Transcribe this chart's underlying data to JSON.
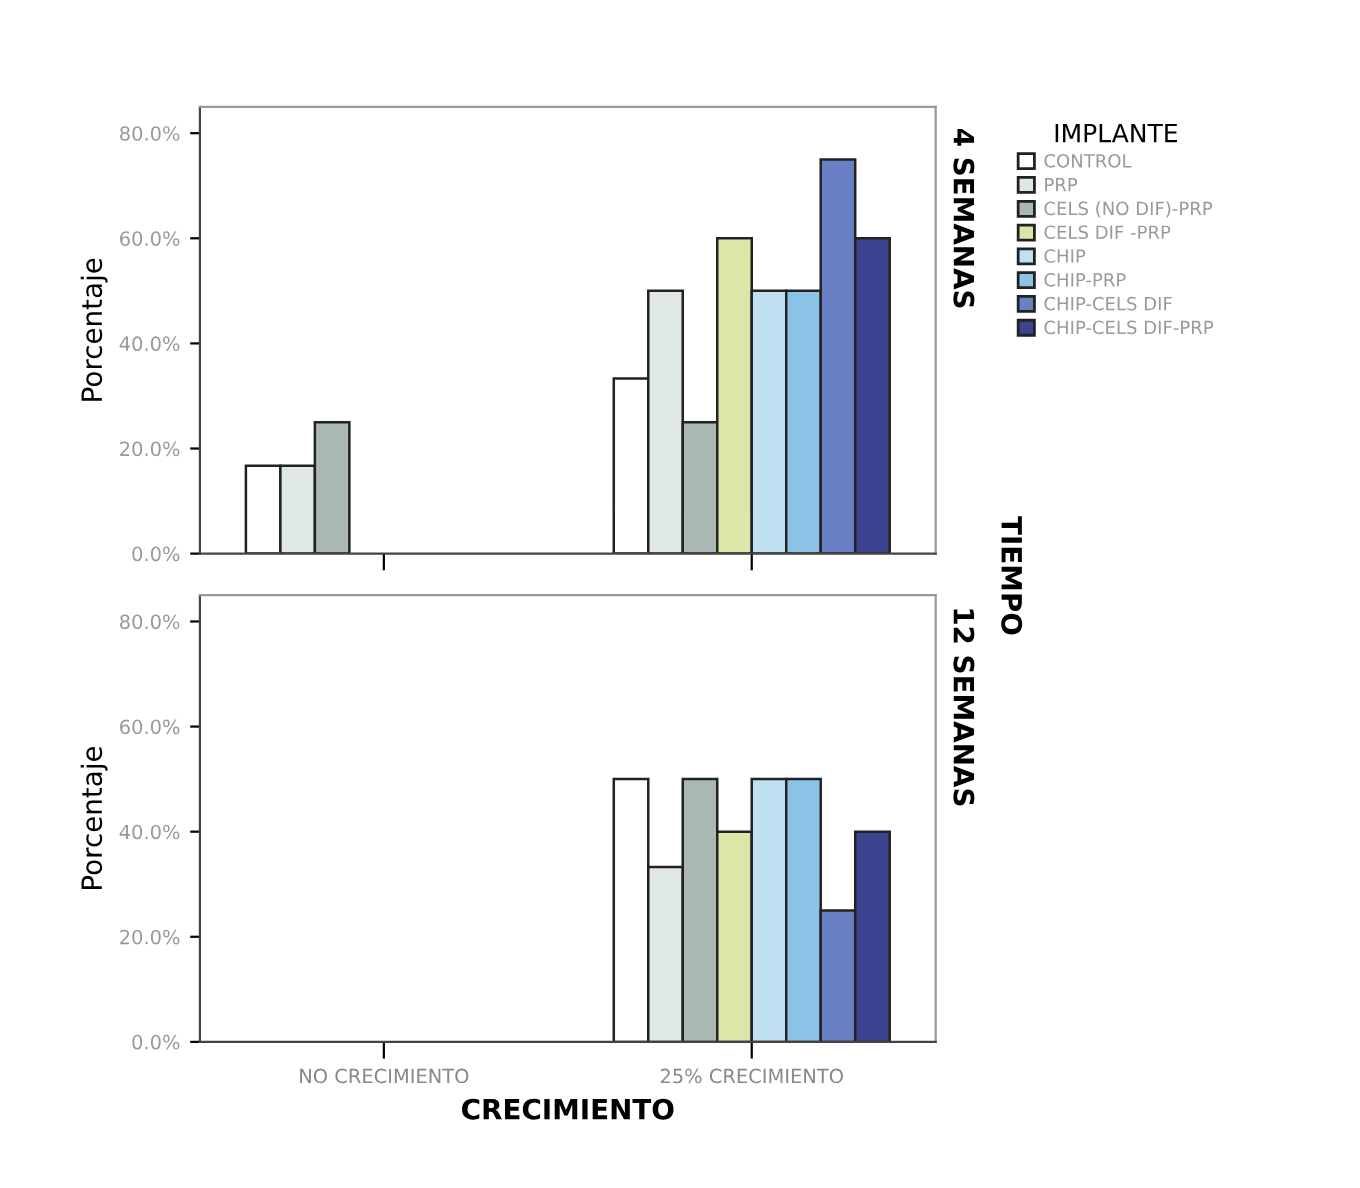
{
  "chart_data": [
    {
      "type": "bar",
      "categories": [
        null,
        null
      ],
      "ylabel": "Porcentaje",
      "y2label": "4 SEMANAS",
      "legend_title": "IMPLANTE",
      "legend": "right",
      "tick_labels": "y",
      "annotations": [
        "TIEMPO"
      ],
      "ylim": [
        0,
        85
      ],
      "yticks": [
        {
          "value": 0,
          "label": "0.0%"
        },
        {
          "value": 20,
          "label": "20.0%"
        },
        {
          "value": 40,
          "label": "40.0%"
        },
        {
          "value": 60,
          "label": "60.0%"
        },
        {
          "value": 80,
          "label": "80.0%"
        }
      ],
      "series": [
        {
          "name": "CONTROL",
          "color": "#ffffff",
          "values": [
            16.7,
            33.3
          ]
        },
        {
          "name": "PRP",
          "color": "#dfe8e6",
          "values": [
            16.7,
            50
          ]
        },
        {
          "name": "CELS (NO DIF)-PRP",
          "color": "#a9b8b2",
          "values": [
            25,
            25
          ]
        },
        {
          "name": "CELS DIF -PRP",
          "color": "#dde6a8",
          "values": [
            null,
            60
          ]
        },
        {
          "name": "CHIP",
          "color": "#bfe0f0",
          "values": [
            null,
            50
          ]
        },
        {
          "name": "CHIP-PRP",
          "color": "#8cc4e8",
          "values": [
            null,
            50
          ]
        },
        {
          "name": "CHIP-CELS DIF",
          "color": "#6a80c4",
          "values": [
            null,
            75
          ]
        },
        {
          "name": "CHIP-CELS DIF-PRP",
          "color": "#3c4490",
          "values": [
            null,
            60
          ]
        }
      ]
    },
    {
      "type": "bar",
      "categories": [
        "NO CRECIMIENTO",
        "25% CRECIMIENTO"
      ],
      "ylabel": "Porcentaje",
      "y2label": "12 SEMANAS",
      "xlabel": "CRECIMIENTO",
      "ylim": [
        0,
        85
      ],
      "yticks": [
        {
          "value": 0,
          "label": "0.0%"
        },
        {
          "value": 20,
          "label": "20.0%"
        },
        {
          "value": 40,
          "label": "40.0%"
        },
        {
          "value": 60,
          "label": "60.0%"
        },
        {
          "value": 80,
          "label": "80.0%"
        }
      ],
      "series": [
        {
          "color": "#ffffff",
          "values": [
            null,
            50
          ]
        },
        {
          "color": "#dfe8e6",
          "values": [
            null,
            33.3
          ]
        },
        {
          "color": "#a9b8b2",
          "values": [
            null,
            50
          ]
        },
        {
          "color": "#dde6a8",
          "values": [
            null,
            40
          ]
        },
        {
          "color": "#bfe0f0",
          "values": [
            null,
            50
          ]
        },
        {
          "color": "#8cc4e8",
          "values": [
            null,
            50
          ]
        },
        {
          "color": "#6a80c4",
          "values": [
            null,
            25
          ]
        },
        {
          "color": "#3c4490",
          "values": [
            null,
            40
          ]
        }
      ]
    }
  ]
}
